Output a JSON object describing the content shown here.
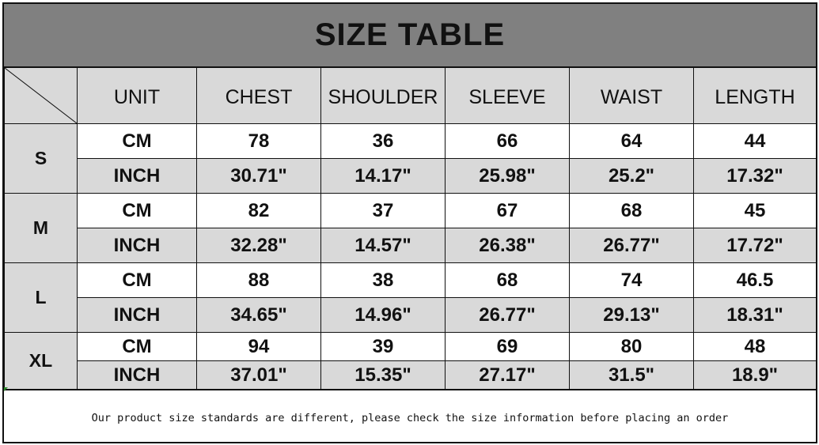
{
  "title": "SIZE TABLE",
  "header": [
    "UNIT",
    "CHEST",
    "SHOULDER",
    "SLEEVE",
    "WAIST",
    "LENGTH"
  ],
  "sizes": [
    {
      "size": "S",
      "rows": [
        {
          "unit": "CM",
          "values": [
            "78",
            "36",
            "66",
            "64",
            "44"
          ]
        },
        {
          "unit": "INCH",
          "values": [
            "30.71\"",
            "14.17\"",
            "25.98\"",
            "25.2\"",
            "17.32\""
          ]
        }
      ]
    },
    {
      "size": "M",
      "rows": [
        {
          "unit": "CM",
          "values": [
            "82",
            "37",
            "67",
            "68",
            "45"
          ]
        },
        {
          "unit": "INCH",
          "values": [
            "32.28\"",
            "14.57\"",
            "26.38\"",
            "26.77\"",
            "17.72\""
          ]
        }
      ]
    },
    {
      "size": "L",
      "rows": [
        {
          "unit": "CM",
          "values": [
            "88",
            "38",
            "68",
            "74",
            "46.5"
          ]
        },
        {
          "unit": "INCH",
          "values": [
            "34.65\"",
            "14.96\"",
            "26.77\"",
            "29.13\"",
            "18.31\""
          ]
        }
      ]
    },
    {
      "size": "XL",
      "rows": [
        {
          "unit": "CM",
          "values": [
            "94",
            "39",
            "69",
            "80",
            "48"
          ]
        },
        {
          "unit": "INCH",
          "values": [
            "37.01\"",
            "15.35\"",
            "27.17\"",
            "31.5\"",
            "18.9\""
          ]
        }
      ]
    }
  ],
  "note": "Our product size standards are different, please check the size information before placing an order",
  "colors": {
    "title_bg": "#808080",
    "shaded_bg": "#d9d9d9",
    "border": "#111111"
  }
}
